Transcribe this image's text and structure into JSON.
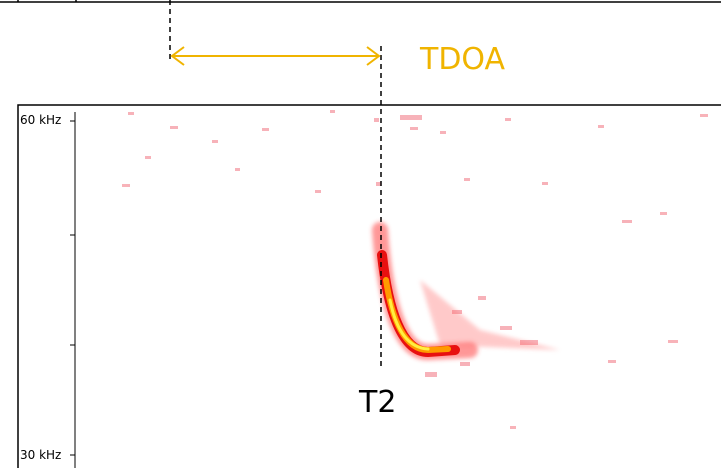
{
  "annotations": {
    "tdoa": "TDOA",
    "t2": "T2"
  },
  "axis": {
    "top_label": "60 kHz",
    "bottom_label": "30 kHz"
  }
}
